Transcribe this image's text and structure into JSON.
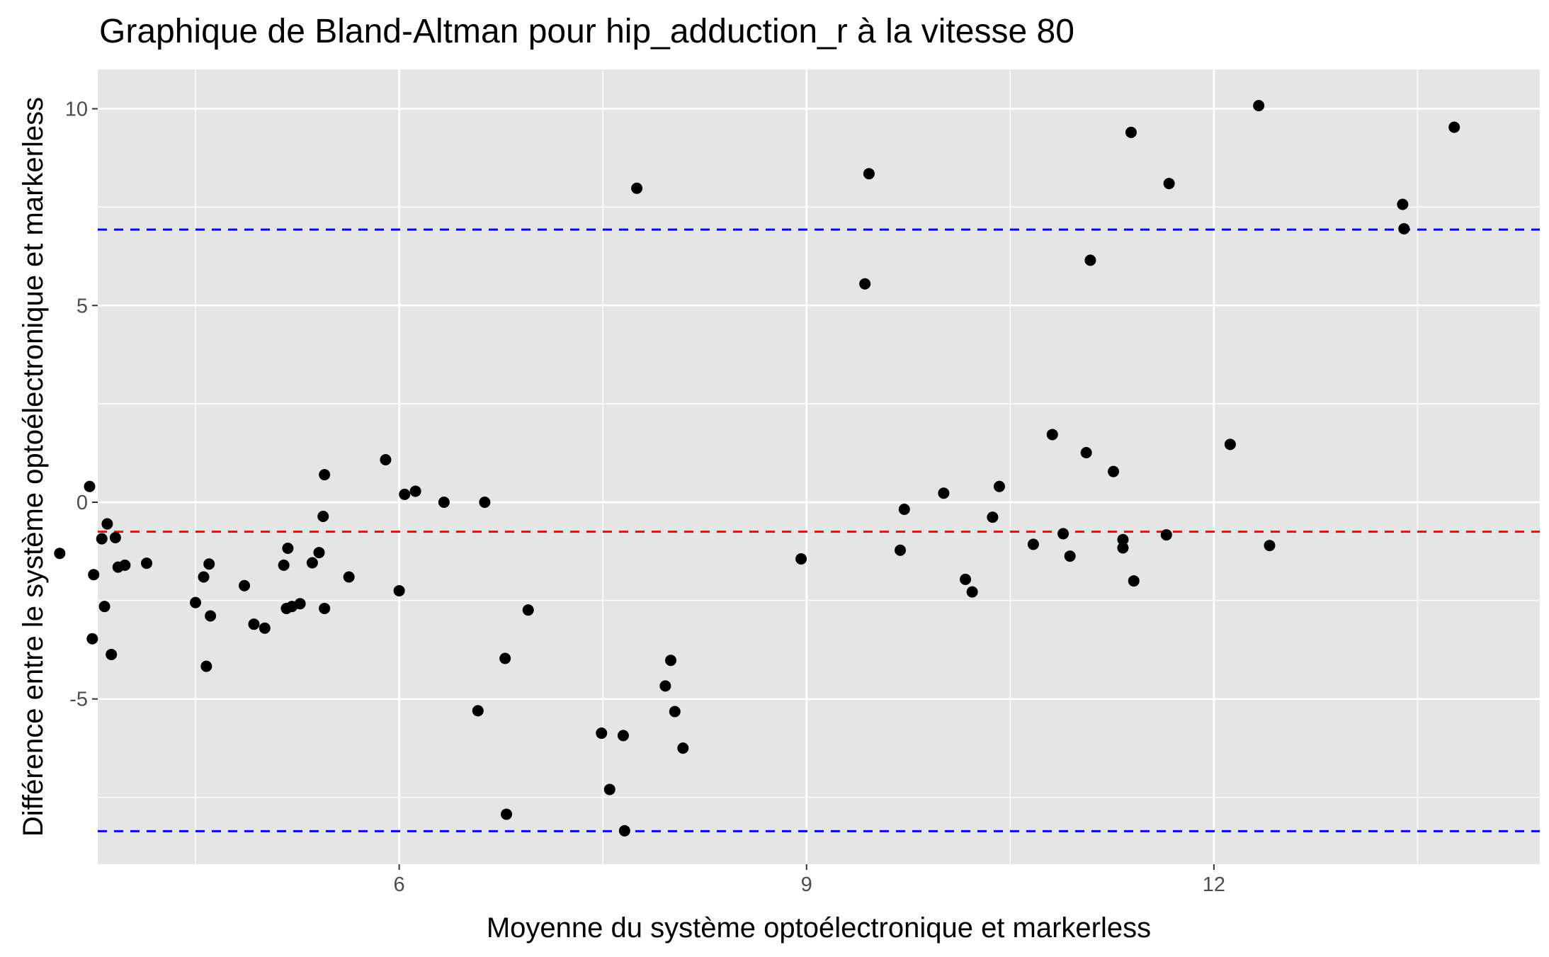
{
  "chart_data": {
    "type": "scatter",
    "title": "Graphique de Bland-Altman pour hip_adduction_r à la vitesse 80",
    "xlabel": "Moyenne du système optoélectronique et markerless",
    "ylabel": "Différence entre le système optoélectronique et markerless",
    "xlim": [
      3.78,
      14.4
    ],
    "ylim": [
      -9.2,
      11.0
    ],
    "x_ticks": [
      6,
      9,
      12
    ],
    "y_ticks": [
      -5,
      0,
      5,
      10
    ],
    "x_tick_labels": [
      "6",
      "9",
      "12"
    ],
    "y_tick_labels": [
      "-5",
      "0",
      "5",
      "10"
    ],
    "grid": true,
    "panel_background": "#e5e5e5",
    "grid_color": "#ffffff",
    "point_color": "#000000",
    "reference_lines": [
      {
        "kind": "mean_difference",
        "y": -0.75,
        "color": "#ff0000",
        "style": "dashed"
      },
      {
        "kind": "upper_limit_of_agreement",
        "y": 6.93,
        "color": "#0000ff",
        "style": "dashed"
      },
      {
        "kind": "lower_limit_of_agreement",
        "y": -8.36,
        "color": "#0000ff",
        "style": "dashed"
      }
    ],
    "points": [
      {
        "x": 3.5,
        "y": -1.3
      },
      {
        "x": 3.72,
        "y": 0.4
      },
      {
        "x": 3.75,
        "y": -1.84
      },
      {
        "x": 3.74,
        "y": -3.47
      },
      {
        "x": 3.81,
        "y": -0.93
      },
      {
        "x": 3.83,
        "y": -2.65
      },
      {
        "x": 3.85,
        "y": -0.55
      },
      {
        "x": 3.88,
        "y": -3.87
      },
      {
        "x": 3.91,
        "y": -0.9
      },
      {
        "x": 3.93,
        "y": -1.65
      },
      {
        "x": 3.98,
        "y": -1.6
      },
      {
        "x": 4.14,
        "y": -1.55
      },
      {
        "x": 4.5,
        "y": -2.55
      },
      {
        "x": 4.56,
        "y": -1.9
      },
      {
        "x": 4.58,
        "y": -4.17
      },
      {
        "x": 4.6,
        "y": -1.57
      },
      {
        "x": 4.61,
        "y": -2.89
      },
      {
        "x": 4.86,
        "y": -2.12
      },
      {
        "x": 4.93,
        "y": -3.1
      },
      {
        "x": 5.01,
        "y": -3.2
      },
      {
        "x": 5.15,
        "y": -1.6
      },
      {
        "x": 5.17,
        "y": -2.7
      },
      {
        "x": 5.18,
        "y": -1.17
      },
      {
        "x": 5.21,
        "y": -2.65
      },
      {
        "x": 5.27,
        "y": -2.58
      },
      {
        "x": 5.36,
        "y": -1.54
      },
      {
        "x": 5.41,
        "y": -1.28
      },
      {
        "x": 5.44,
        "y": -0.36
      },
      {
        "x": 5.45,
        "y": 0.7
      },
      {
        "x": 5.45,
        "y": -2.7
      },
      {
        "x": 5.63,
        "y": -1.9
      },
      {
        "x": 5.9,
        "y": 1.08
      },
      {
        "x": 6.0,
        "y": -2.25
      },
      {
        "x": 6.04,
        "y": 0.2
      },
      {
        "x": 6.12,
        "y": 0.28
      },
      {
        "x": 6.33,
        "y": 0.0
      },
      {
        "x": 6.58,
        "y": -5.3
      },
      {
        "x": 6.63,
        "y": 0.0
      },
      {
        "x": 6.78,
        "y": -3.97
      },
      {
        "x": 6.79,
        "y": -7.93
      },
      {
        "x": 6.95,
        "y": -2.74
      },
      {
        "x": 7.49,
        "y": -5.87
      },
      {
        "x": 7.55,
        "y": -7.3
      },
      {
        "x": 7.65,
        "y": -5.93
      },
      {
        "x": 7.66,
        "y": -8.35
      },
      {
        "x": 7.75,
        "y": 7.98
      },
      {
        "x": 7.96,
        "y": -4.67
      },
      {
        "x": 8.0,
        "y": -4.02
      },
      {
        "x": 8.03,
        "y": -5.32
      },
      {
        "x": 8.09,
        "y": -6.25
      },
      {
        "x": 8.96,
        "y": -1.44
      },
      {
        "x": 9.43,
        "y": 5.55
      },
      {
        "x": 9.46,
        "y": 8.35
      },
      {
        "x": 9.69,
        "y": -1.22
      },
      {
        "x": 9.72,
        "y": -0.18
      },
      {
        "x": 10.01,
        "y": 0.23
      },
      {
        "x": 10.17,
        "y": -1.96
      },
      {
        "x": 10.22,
        "y": -2.28
      },
      {
        "x": 10.37,
        "y": -0.38
      },
      {
        "x": 10.42,
        "y": 0.4
      },
      {
        "x": 10.67,
        "y": -1.07
      },
      {
        "x": 10.81,
        "y": 1.72
      },
      {
        "x": 10.89,
        "y": -0.8
      },
      {
        "x": 10.94,
        "y": -1.37
      },
      {
        "x": 11.06,
        "y": 1.26
      },
      {
        "x": 11.09,
        "y": 6.15
      },
      {
        "x": 11.26,
        "y": 0.78
      },
      {
        "x": 11.33,
        "y": -0.95
      },
      {
        "x": 11.33,
        "y": -1.16
      },
      {
        "x": 11.39,
        "y": 9.4
      },
      {
        "x": 11.41,
        "y": -2.0
      },
      {
        "x": 11.65,
        "y": -0.83
      },
      {
        "x": 11.67,
        "y": 8.1
      },
      {
        "x": 12.12,
        "y": 1.47
      },
      {
        "x": 12.33,
        "y": 10.08
      },
      {
        "x": 12.41,
        "y": -1.1
      },
      {
        "x": 13.39,
        "y": 7.57
      },
      {
        "x": 13.4,
        "y": 6.95
      },
      {
        "x": 13.77,
        "y": 9.53
      }
    ]
  }
}
